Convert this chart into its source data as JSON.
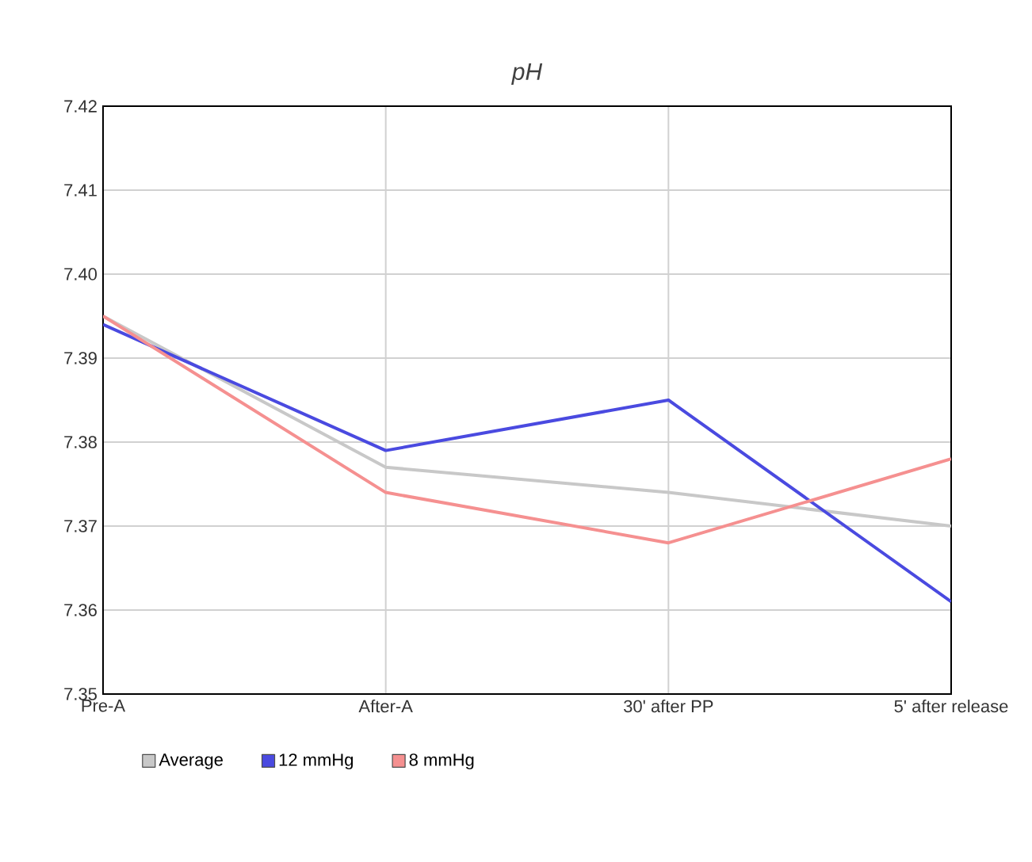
{
  "chart_data": {
    "type": "line",
    "title": "*pH*",
    "categories": [
      "Pre-A",
      "After-A",
      "30' after PP",
      "5' after release"
    ],
    "series": [
      {
        "name": "Average",
        "color": "#c8c8c8",
        "values": [
          7.395,
          7.377,
          7.374,
          7.37
        ]
      },
      {
        "name": "12 mmHg",
        "color": "#4a4ae0",
        "values": [
          7.394,
          7.379,
          7.385,
          7.361
        ]
      },
      {
        "name": "8 mmHg",
        "color": "#f59090",
        "values": [
          7.395,
          7.374,
          7.368,
          7.378
        ]
      }
    ],
    "ylim": [
      7.35,
      7.42
    ],
    "yticks": [
      {
        "value": 7.35,
        "label": "7.35"
      },
      {
        "value": 7.36,
        "label": "7.36"
      },
      {
        "value": 7.37,
        "label": "7.37"
      },
      {
        "value": 7.38,
        "label": "7.38"
      },
      {
        "value": 7.39,
        "label": "7.39"
      },
      {
        "value": 7.4,
        "label": "7.40"
      },
      {
        "value": 7.41,
        "label": "7.41"
      },
      {
        "value": 7.42,
        "label": "7.42"
      }
    ],
    "grid": true,
    "legend": "bottom",
    "marker": "none",
    "line_style": "solid"
  }
}
